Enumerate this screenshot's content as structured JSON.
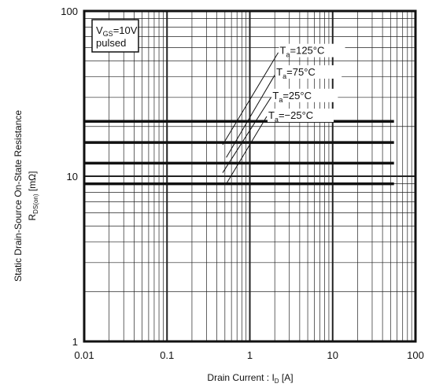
{
  "chart_data": {
    "type": "line",
    "x_scale": "log",
    "y_scale": "log",
    "xlim": [
      0.01,
      100
    ],
    "ylim": [
      1,
      100
    ],
    "grid": true,
    "x_ticks": [
      {
        "value": 0.01,
        "label": "0.01"
      },
      {
        "value": 0.1,
        "label": "0.1"
      },
      {
        "value": 1,
        "label": "1"
      },
      {
        "value": 10,
        "label": "10"
      },
      {
        "value": 100,
        "label": "100"
      }
    ],
    "y_ticks": [
      {
        "value": 1,
        "label": "1"
      },
      {
        "value": 10,
        "label": "10"
      },
      {
        "value": 100,
        "label": "100"
      }
    ],
    "xlabel": {
      "main": "Drain Current :  I",
      "sub": "D",
      "unit": " [A]"
    },
    "ylabel": {
      "line1": "Static Drain-Source On-State Resistance",
      "main": "R",
      "sub": "DS(on)",
      "unit": " [mΩ]"
    },
    "condition_box": {
      "main": "V",
      "sub": "GS",
      "rest": "=10V",
      "line2": "pulsed"
    },
    "series": [
      {
        "name_main": "T",
        "name_sub": "a",
        "name_rest": "=125°C",
        "x": [
          0.01,
          55
        ],
        "y": [
          21.5,
          21.5
        ],
        "label_at_x": 2.5
      },
      {
        "name_main": "T",
        "name_sub": "a",
        "name_rest": "=75°C",
        "x": [
          0.01,
          55
        ],
        "y": [
          16,
          16
        ],
        "label_at_x": 2.2
      },
      {
        "name_main": "T",
        "name_sub": "a",
        "name_rest": "=25°C",
        "x": [
          0.01,
          55
        ],
        "y": [
          12,
          12
        ],
        "label_at_x": 1.9
      },
      {
        "name_main": "T",
        "name_sub": "a",
        "name_rest": "=−25°C",
        "x": [
          0.01,
          55
        ],
        "y": [
          9,
          9
        ],
        "label_at_x": 1.7
      }
    ],
    "legend": [
      {
        "main": "T",
        "sub": "a",
        "rest": "=125°C",
        "y": 58
      },
      {
        "main": "T",
        "sub": "a",
        "rest": "=75°C",
        "y": 43
      },
      {
        "main": "T",
        "sub": "a",
        "rest": "=25°C",
        "y": 31
      },
      {
        "main": "T",
        "sub": "a",
        "rest": "=−25°C",
        "y": 23.5
      }
    ],
    "leaders": [
      {
        "x": [
          0.47,
          2.2
        ],
        "y": [
          15.5,
          56
        ]
      },
      {
        "x": [
          0.52,
          2.0
        ],
        "y": [
          13,
          41
        ]
      },
      {
        "x": [
          0.47,
          1.8
        ],
        "y": [
          10.5,
          30
        ]
      },
      {
        "x": [
          0.52,
          1.6
        ],
        "y": [
          9,
          23
        ]
      }
    ],
    "colors": {
      "line": "#111111",
      "grid": "#222222",
      "background": "#ffffff"
    }
  }
}
